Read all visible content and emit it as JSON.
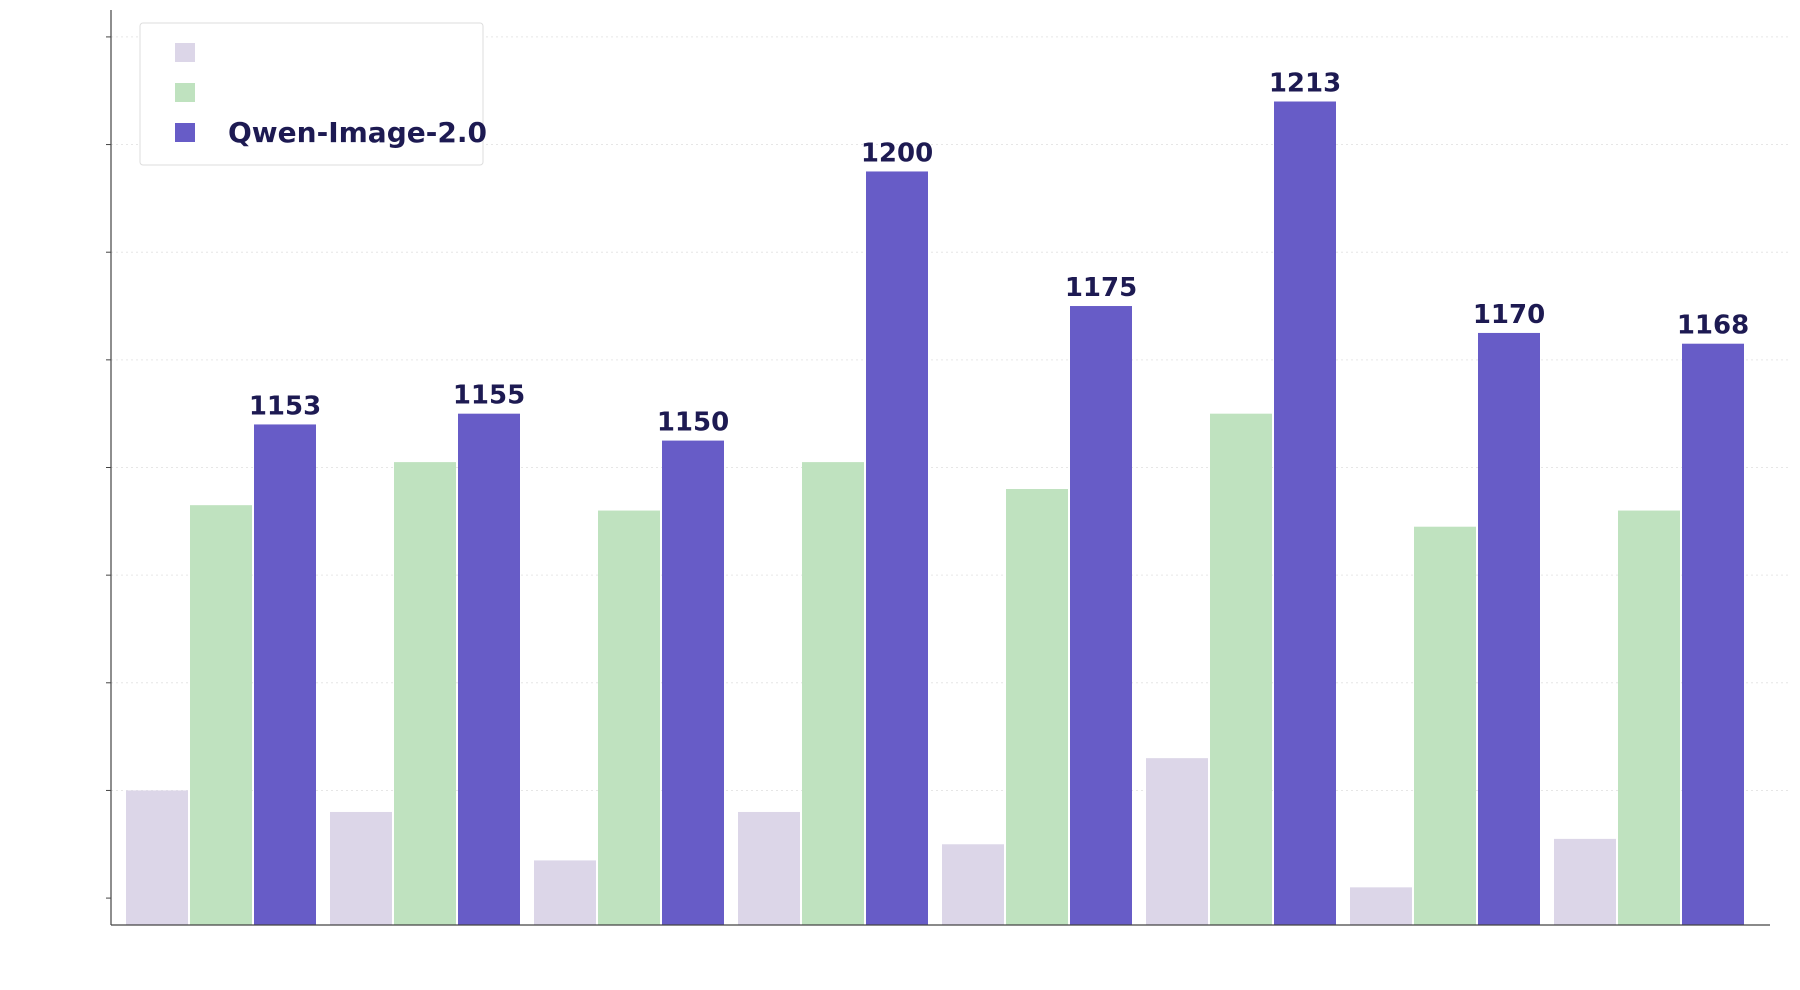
{
  "colors": {
    "series_1": "#dcd6e8",
    "series_2": "#bfe2bf",
    "series_3": "#675cc7",
    "label_text": "#1d1a52",
    "axis": "#444444",
    "grid": "#e6e6e6",
    "legend_border": "#dddddd"
  },
  "chart_data": {
    "type": "bar",
    "title": "",
    "xlabel": "",
    "ylabel": "",
    "categories": [
      "",
      "",
      "",
      "",
      "",
      "",
      "",
      ""
    ],
    "ylim": [
      1060,
      1230
    ],
    "grid": true,
    "legend_position": "top-left",
    "series": [
      {
        "name": "",
        "values": [
          1085,
          1081,
          1072,
          1081,
          1075,
          1091,
          1067,
          1076
        ],
        "show_value_labels": false
      },
      {
        "name": "",
        "values": [
          1138,
          1146,
          1137,
          1146,
          1141,
          1155,
          1134,
          1137
        ],
        "show_value_labels": false
      },
      {
        "name": "Qwen-Image-2.0",
        "values": [
          1153,
          1155,
          1150,
          1200,
          1175,
          1213,
          1170,
          1168
        ],
        "show_value_labels": true
      }
    ]
  }
}
